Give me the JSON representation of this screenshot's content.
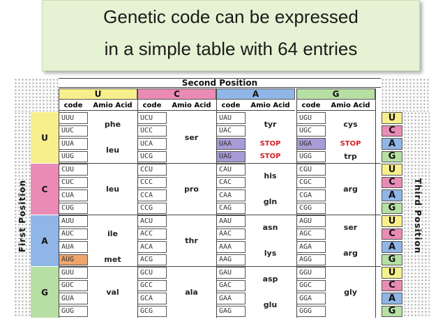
{
  "title": {
    "line1": "Genetic code can be expressed",
    "line2": "in a simple table with 64 entries"
  },
  "table": {
    "second_position_label": "Second Position",
    "first_position_label": "First Position",
    "third_position_label": "Third Position",
    "col_header_code": "code",
    "col_header_amino": "Amio Acid",
    "bases": [
      "U",
      "C",
      "A",
      "G"
    ],
    "colors": {
      "U": "#f7ef8c",
      "C": "#e98bb5",
      "A": "#8fb6e6",
      "G": "#b6dfa4",
      "stop_cell": "#a99bd6",
      "start_cell": "#f0a46b",
      "stop_text": "#d82020"
    },
    "codes": {
      "U": [
        "UUU",
        "UUC",
        "UUA",
        "UUG",
        "CUU",
        "CUC",
        "CUA",
        "CUG",
        "AUU",
        "AUC",
        "AUA",
        "AUG",
        "GUU",
        "GUC",
        "GUA",
        "GUG"
      ],
      "C": [
        "UCU",
        "UCC",
        "UCA",
        "UCG",
        "CCU",
        "CCC",
        "CCA",
        "CCG",
        "ACU",
        "ACC",
        "ACA",
        "ACG",
        "GCU",
        "GCC",
        "GCA",
        "GCG"
      ],
      "A": [
        "UAU",
        "UAC",
        "UAA",
        "UAG",
        "CAU",
        "CAC",
        "CAA",
        "CAG",
        "AAU",
        "AAC",
        "AAA",
        "AAG",
        "GAU",
        "GAC",
        "GAA",
        "GAG"
      ],
      "G": [
        "UGU",
        "UGC",
        "UGA",
        "UGG",
        "CGU",
        "CGC",
        "CGA",
        "CGG",
        "AGU",
        "AGC",
        "AGA",
        "AGG",
        "GGU",
        "GGC",
        "GGA",
        "GGG"
      ]
    },
    "amino_groups": {
      "U": [
        {
          "label": "phe",
          "start": 0,
          "span": 2
        },
        {
          "label": "leu",
          "start": 2,
          "span": 2
        },
        {
          "label": "leu",
          "start": 4,
          "span": 4
        },
        {
          "label": "ile",
          "start": 8,
          "span": 3
        },
        {
          "label": "met",
          "start": 11,
          "span": 1
        },
        {
          "label": "val",
          "start": 12,
          "span": 4
        }
      ],
      "C": [
        {
          "label": "ser",
          "start": 0,
          "span": 4
        },
        {
          "label": "pro",
          "start": 4,
          "span": 4
        },
        {
          "label": "thr",
          "start": 8,
          "span": 4
        },
        {
          "label": "ala",
          "start": 12,
          "span": 4
        }
      ],
      "A": [
        {
          "label": "tyr",
          "start": 0,
          "span": 2
        },
        {
          "label": "STOP",
          "start": 2,
          "span": 1
        },
        {
          "label": "STOP",
          "start": 3,
          "span": 1
        },
        {
          "label": "his",
          "start": 4,
          "span": 2
        },
        {
          "label": "gln",
          "start": 6,
          "span": 2
        },
        {
          "label": "asn",
          "start": 8,
          "span": 2
        },
        {
          "label": "lys",
          "start": 10,
          "span": 2
        },
        {
          "label": "asp",
          "start": 12,
          "span": 2
        },
        {
          "label": "glu",
          "start": 14,
          "span": 2
        }
      ],
      "G": [
        {
          "label": "cys",
          "start": 0,
          "span": 2
        },
        {
          "label": "STOP",
          "start": 2,
          "span": 1
        },
        {
          "label": "trp",
          "start": 3,
          "span": 1
        },
        {
          "label": "arg",
          "start": 4,
          "span": 4
        },
        {
          "label": "ser",
          "start": 8,
          "span": 2
        },
        {
          "label": "arg",
          "start": 10,
          "span": 2
        },
        {
          "label": "gly",
          "start": 12,
          "span": 4
        }
      ]
    },
    "third_position": [
      "U",
      "C",
      "A",
      "G",
      "U",
      "C",
      "A",
      "G",
      "U",
      "C",
      "A",
      "G",
      "U",
      "C",
      "A",
      "G"
    ],
    "highlights": {
      "stop_codes": [
        "UAA",
        "UAG",
        "UGA"
      ],
      "start_codes": [
        "AUG"
      ]
    }
  }
}
